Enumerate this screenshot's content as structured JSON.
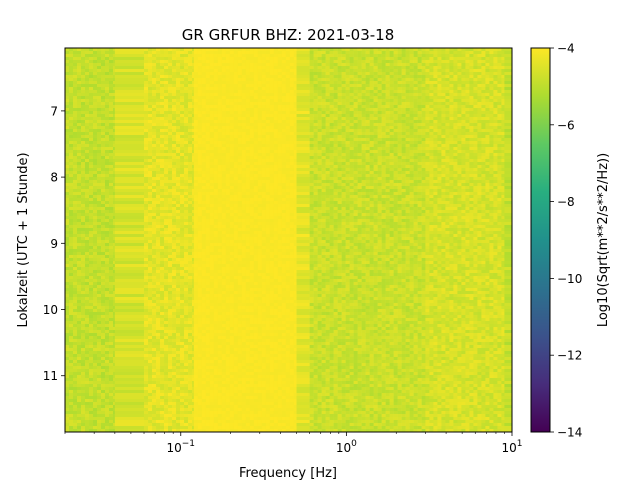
{
  "chart_data": {
    "type": "heatmap",
    "title": "GR GRFUR  BHZ: 2021-03-18",
    "xlabel": "Frequency [Hz]",
    "ylabel": "Lokalzeit (UTC + 1 Stunde)",
    "x_scale": "log",
    "x_range_hz": [
      0.02,
      10
    ],
    "x_ticks": [
      {
        "value": 0.1,
        "base": "10",
        "exp": "−1"
      },
      {
        "value": 1,
        "base": "10",
        "exp": "0"
      },
      {
        "value": 10,
        "base": "10",
        "exp": "1"
      }
    ],
    "y_range_hours": [
      6.05,
      11.85
    ],
    "y_inverted": true,
    "y_ticks": [
      7,
      8,
      9,
      10,
      11
    ],
    "y_tick_labels": [
      "7",
      "8",
      "9",
      "10",
      "11"
    ],
    "colorbar": {
      "label": "Log10(Sqrt(m**2/s**2/Hz))",
      "range": [
        -14,
        -4
      ],
      "ticks": [
        -4,
        -6,
        -8,
        -10,
        -12,
        -14
      ],
      "tick_labels": [
        "−4",
        "−6",
        "−8",
        "−10",
        "−12",
        "−14"
      ],
      "colormap": "viridis"
    },
    "frequency_bands": [
      {
        "from_hz": 0.02,
        "to_hz": 0.04,
        "level": -4.9
      },
      {
        "from_hz": 0.04,
        "to_hz": 0.06,
        "level": -4.6
      },
      {
        "from_hz": 0.06,
        "to_hz": 0.12,
        "level": -4.4
      },
      {
        "from_hz": 0.12,
        "to_hz": 0.5,
        "level": -4.05
      },
      {
        "from_hz": 0.5,
        "to_hz": 0.6,
        "level": -4.4
      },
      {
        "from_hz": 0.6,
        "to_hz": 3,
        "level": -4.8
      },
      {
        "from_hz": 3,
        "to_hz": 9,
        "level": -4.6
      },
      {
        "from_hz": 9,
        "to_hz": 10,
        "level": -4.9
      }
    ]
  }
}
